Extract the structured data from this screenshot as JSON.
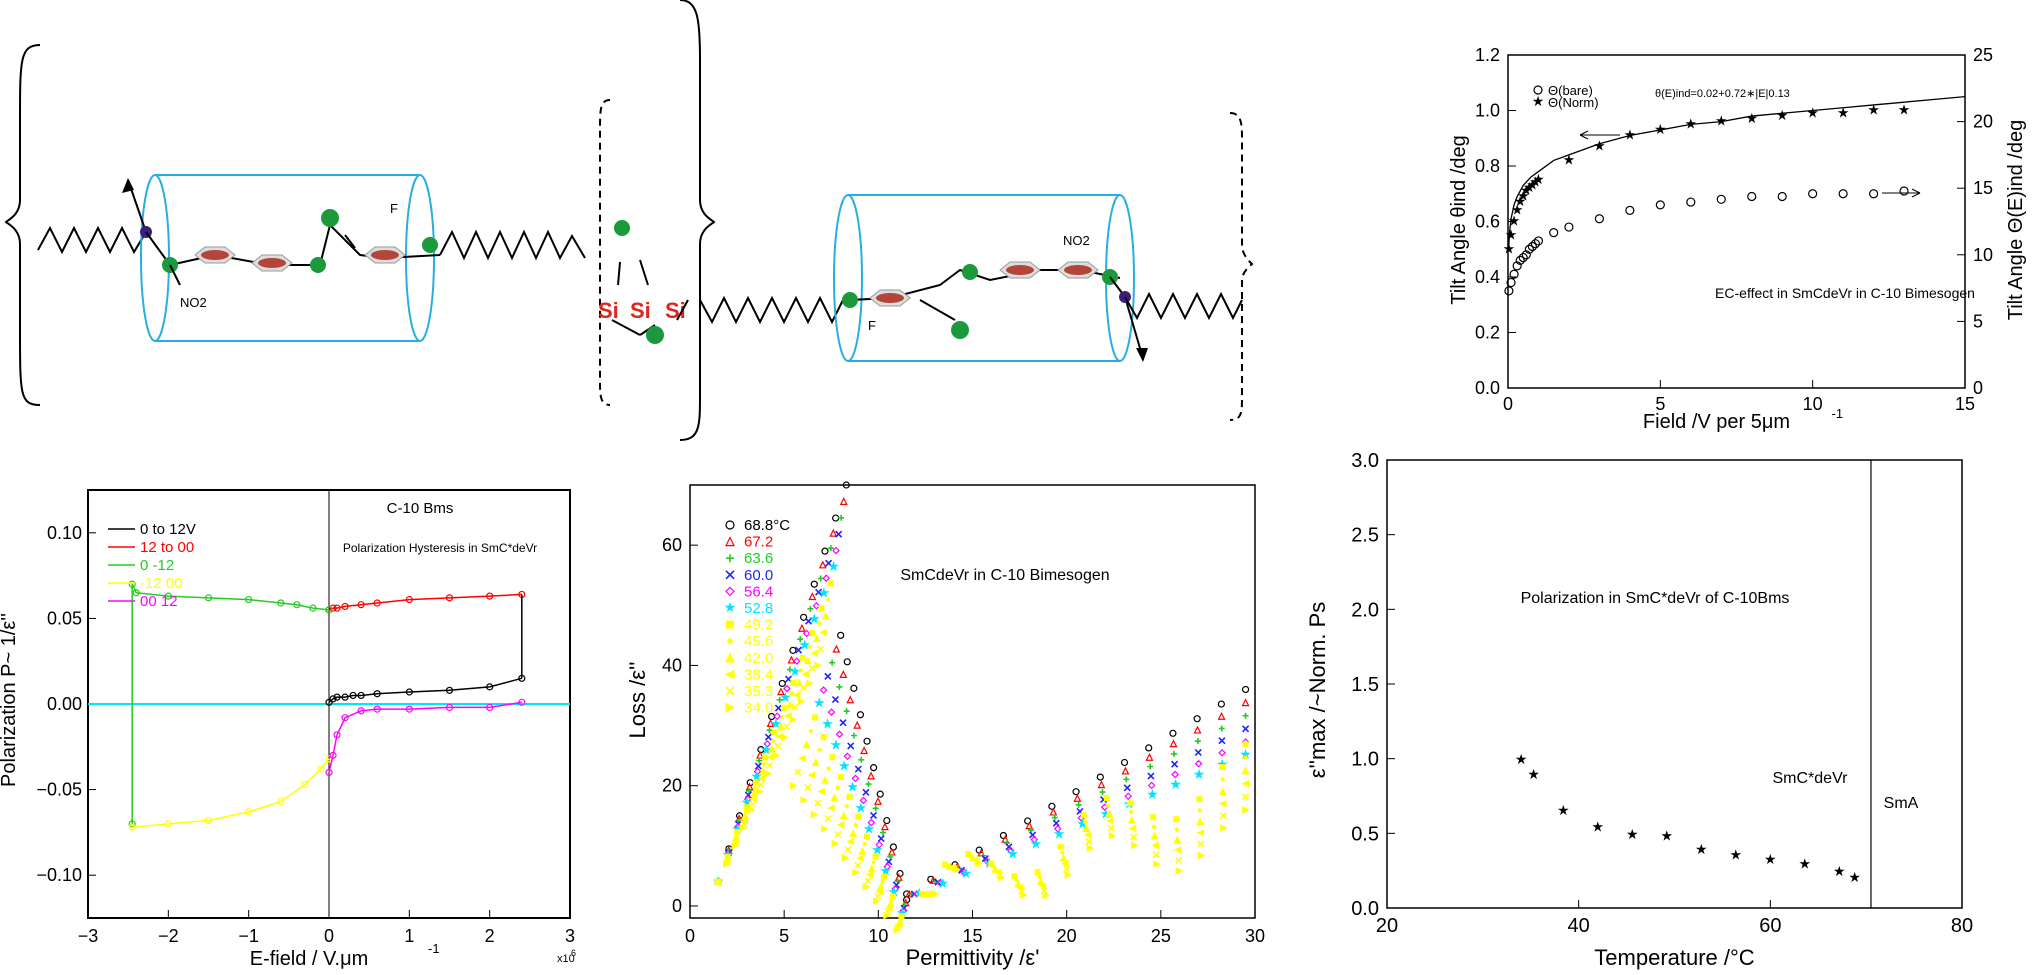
{
  "molecule": {
    "left_tail": "NO2",
    "left_fluoro": "F",
    "right_nitro": "NO2",
    "right_fluoro": "F",
    "si": [
      "Si",
      "Si",
      "Si"
    ],
    "colors": {
      "cylinder": "#29aee2",
      "ring": "#b3453a",
      "node": "#1a9a3a",
      "si": "#e0251d",
      "chiral": "#3b1f7a"
    }
  },
  "chart_data": [
    {
      "type": "line",
      "panel": "tilt-angle",
      "xlabel": "Field /V per 5μm",
      "xlabel_sup": "-1",
      "ylabel": "Tilt Angle θind /deg",
      "y2label": "Tilt Angle Θ(E)ind /deg",
      "xlim": [
        0,
        15
      ],
      "ylim": [
        0,
        1.2
      ],
      "y2lim": [
        0,
        25
      ],
      "xticks": [
        "0",
        "5",
        "10",
        "15"
      ],
      "yticks": [
        "0.0",
        "0.2",
        "0.4",
        "0.6",
        "0.8",
        "1.0",
        "1.2"
      ],
      "y2ticks": [
        "0",
        "5",
        "10",
        "15",
        "20",
        "25"
      ],
      "legend": [
        "Θ(bare)",
        "Θ(Norm)"
      ],
      "equation": "θ(E)ind=0.02+0.72∗|E|0.13",
      "annotation": "EC-effect in SmCdeVr in C-10 Bimesogen",
      "series": [
        {
          "name": "Θ(bare)",
          "marker": "circle",
          "axis": "left",
          "x": [
            0.03,
            0.1,
            0.2,
            0.3,
            0.4,
            0.5,
            0.6,
            0.7,
            0.8,
            0.9,
            1.0,
            1.5,
            2,
            3,
            4,
            5,
            6,
            7,
            8,
            9,
            10,
            11,
            12,
            13
          ],
          "y": [
            0.35,
            0.38,
            0.41,
            0.44,
            0.46,
            0.47,
            0.48,
            0.5,
            0.51,
            0.52,
            0.53,
            0.56,
            0.58,
            0.61,
            0.64,
            0.66,
            0.67,
            0.68,
            0.69,
            0.69,
            0.7,
            0.7,
            0.7,
            0.71
          ]
        },
        {
          "name": "Θ(Norm)",
          "marker": "star",
          "axis": "left",
          "x": [
            0.03,
            0.1,
            0.2,
            0.3,
            0.4,
            0.5,
            0.6,
            0.7,
            0.8,
            0.9,
            1.0,
            2,
            3,
            4,
            5,
            6,
            7,
            8,
            9,
            10,
            11,
            12,
            13
          ],
          "y": [
            0.5,
            0.55,
            0.6,
            0.64,
            0.67,
            0.69,
            0.71,
            0.72,
            0.73,
            0.74,
            0.75,
            0.82,
            0.87,
            0.91,
            0.93,
            0.95,
            0.96,
            0.97,
            0.98,
            0.99,
            0.99,
            1.0,
            1.0
          ]
        },
        {
          "name": "fit",
          "marker": "none",
          "x": [
            0.02,
            0.05,
            0.1,
            0.2,
            0.3,
            0.5,
            0.75,
            1,
            1.5,
            2,
            3,
            4,
            5,
            6,
            7,
            8,
            9,
            10,
            11,
            12,
            13,
            14,
            15
          ],
          "y": [
            0.5,
            0.56,
            0.61,
            0.66,
            0.69,
            0.73,
            0.76,
            0.78,
            0.82,
            0.84,
            0.88,
            0.91,
            0.93,
            0.95,
            0.96,
            0.98,
            0.99,
            1.0,
            1.01,
            1.02,
            1.03,
            1.04,
            1.05
          ]
        }
      ]
    },
    {
      "type": "line",
      "panel": "hysteresis",
      "xlabel": "E-field /  V.μm",
      "xlabel_sup": "-1",
      "ylabel": "Polarization  P~ 1/ε''",
      "x_multiplier": "x10",
      "x_multiplier_sup": "6",
      "xlim": [
        -3,
        3
      ],
      "ylim": [
        -0.125,
        0.125
      ],
      "xticks": [
        "−3",
        "−2",
        "−1",
        "0",
        "1",
        "2",
        "3"
      ],
      "yticks": [
        "−0.10",
        "−0.05",
        "0.00",
        "0.05",
        "0.10"
      ],
      "title": "C-10 Bms",
      "annotation": "Polarization Hysteresis in SmC*deVr",
      "series": [
        {
          "name": "0  to  12V",
          "color": "#000000",
          "x": [
            0,
            0.05,
            0.1,
            0.2,
            0.3,
            0.4,
            0.6,
            1.0,
            1.5,
            2.0,
            2.4
          ],
          "y": [
            0.001,
            0.003,
            0.004,
            0.004,
            0.005,
            0.005,
            0.006,
            0.007,
            0.008,
            0.01,
            0.015
          ]
        },
        {
          "name": "12  to  00",
          "color": "#ff0000",
          "x": [
            2.4,
            2.0,
            1.5,
            1.0,
            0.6,
            0.4,
            0.2,
            0.1,
            0.05,
            0
          ],
          "y": [
            0.064,
            0.063,
            0.062,
            0.061,
            0.059,
            0.058,
            0.057,
            0.056,
            0.056,
            0.055
          ]
        },
        {
          "name": "0    -12",
          "color": "#22cc22",
          "x": [
            0,
            -0.2,
            -0.4,
            -0.6,
            -1.0,
            -1.5,
            -2.0,
            -2.4,
            -2.45,
            -2.45
          ],
          "y": [
            0.055,
            0.056,
            0.058,
            0.059,
            0.061,
            0.062,
            0.063,
            0.065,
            0.07,
            -0.07
          ]
        },
        {
          "name": "-12    00",
          "color": "#ffff00",
          "x": [
            -2.45,
            -2.0,
            -1.5,
            -1.0,
            -0.6,
            -0.3,
            -0.1,
            0
          ],
          "y": [
            -0.072,
            -0.07,
            -0.068,
            -0.063,
            -0.057,
            -0.047,
            -0.038,
            -0.032
          ]
        },
        {
          "name": "00    12",
          "color": "#ff00ff",
          "x": [
            0,
            0.05,
            0.1,
            0.2,
            0.4,
            0.6,
            1.0,
            1.5,
            2.0,
            2.4
          ],
          "y": [
            -0.04,
            -0.03,
            -0.018,
            -0.008,
            -0.004,
            -0.003,
            -0.003,
            -0.002,
            -0.002,
            0.001
          ]
        }
      ]
    },
    {
      "type": "scatter",
      "panel": "cole-cole",
      "xlabel": "Permittivity  /ε'",
      "ylabel": "Loss  /ε''",
      "xlim": [
        0,
        30
      ],
      "ylim": [
        -2,
        70
      ],
      "xticks": [
        "0",
        "5",
        "10",
        "15",
        "20",
        "25",
        "30"
      ],
      "yticks": [
        "0",
        "20",
        "40",
        "60"
      ],
      "annotation": "SmCdeVr  in  C-10  Bimesogen",
      "legend_unit": "°C",
      "series": [
        {
          "name": "68.8",
          "color": "#000000",
          "marker": "circle"
        },
        {
          "name": "67.2",
          "color": "#ff0000",
          "marker": "triangle"
        },
        {
          "name": "63.6",
          "color": "#22cc22",
          "marker": "plus"
        },
        {
          "name": "60.0",
          "color": "#2222ff",
          "marker": "x"
        },
        {
          "name": "56.4",
          "color": "#ff00ff",
          "marker": "diamond"
        },
        {
          "name": "52.8",
          "color": "#00e5ff",
          "marker": "star"
        },
        {
          "name": "49.2",
          "color": "#ffff00",
          "marker": "square"
        },
        {
          "name": "45.6",
          "color": "#ffff00",
          "marker": "dot"
        },
        {
          "name": "42.0",
          "color": "#ffff00",
          "marker": "triangle-up"
        },
        {
          "name": "38.4",
          "color": "#ffff00",
          "marker": "triangle-left"
        },
        {
          "name": "35.3",
          "color": "#ffff00",
          "marker": "cross"
        },
        {
          "name": "34.0",
          "color": "#ffff00",
          "marker": "triangle-right"
        }
      ]
    },
    {
      "type": "scatter",
      "panel": "polarization-temperature",
      "xlabel": "Temperature  /°C",
      "ylabel": "ε''max  /~Norm.  Ps",
      "xlim": [
        20,
        80
      ],
      "ylim": [
        0,
        3
      ],
      "xticks": [
        "20",
        "40",
        "60",
        "80"
      ],
      "yticks": [
        "0.0",
        "0.5",
        "1.0",
        "1.5",
        "2.0",
        "2.5",
        "3.0"
      ],
      "annotation": "Polarization in SmC*deVr of C-10Bms",
      "phase_left": "SmC*deVr",
      "phase_right": "SmA",
      "phase_boundary": 70.5,
      "series": [
        {
          "name": "",
          "marker": "star",
          "x": [
            34,
            35.3,
            38.4,
            42,
            45.6,
            49.2,
            52.8,
            56.4,
            60,
            63.6,
            67.2,
            68.8
          ],
          "y": [
            0.99,
            0.89,
            0.65,
            0.54,
            0.49,
            0.48,
            0.39,
            0.35,
            0.32,
            0.29,
            0.24,
            0.2
          ]
        }
      ]
    }
  ]
}
